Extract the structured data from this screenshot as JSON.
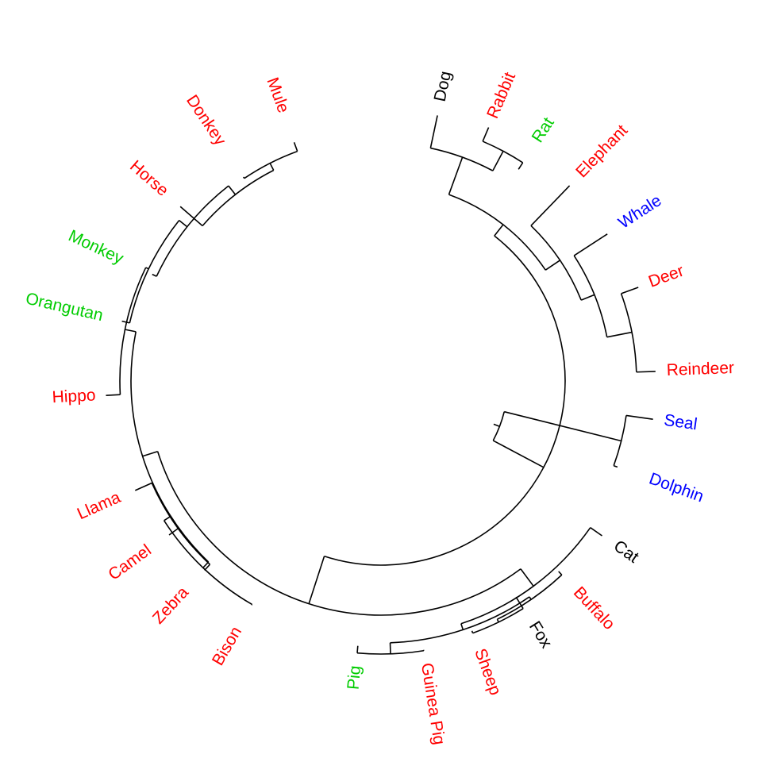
{
  "colors": {
    "red": "#ff0000",
    "green": "#00cc00",
    "blue": "#0000ff",
    "black": "#000000",
    "branch": "#000000",
    "background": "#ffffff"
  },
  "diagram": {
    "type": "circular-dendrogram",
    "leaves": [
      {
        "label": "Dog",
        "color": "black"
      },
      {
        "label": "Rabbit",
        "color": "red"
      },
      {
        "label": "Rat",
        "color": "green"
      },
      {
        "label": "Elephant",
        "color": "red"
      },
      {
        "label": "Whale",
        "color": "blue"
      },
      {
        "label": "Deer",
        "color": "red"
      },
      {
        "label": "Reindeer",
        "color": "red"
      },
      {
        "label": "Seal",
        "color": "blue"
      },
      {
        "label": "Dolphin",
        "color": "blue"
      },
      {
        "label": "Cat",
        "color": "black"
      },
      {
        "label": "Buffalo",
        "color": "red"
      },
      {
        "label": "Fox",
        "color": "black"
      },
      {
        "label": "Sheep",
        "color": "red"
      },
      {
        "label": "Guinea Pig",
        "color": "red"
      },
      {
        "label": "Pig",
        "color": "green"
      },
      {
        "label": "Bison",
        "color": "red"
      },
      {
        "label": "Zebra",
        "color": "red"
      },
      {
        "label": "Camel",
        "color": "red"
      },
      {
        "label": "Llama",
        "color": "red"
      },
      {
        "label": "Hippo",
        "color": "red"
      },
      {
        "label": "Orangutan",
        "color": "green"
      },
      {
        "label": "Monkey",
        "color": "green"
      },
      {
        "label": "Horse",
        "color": "red"
      },
      {
        "label": "Donkey",
        "color": "red"
      },
      {
        "label": "Mule",
        "color": "red"
      }
    ]
  }
}
